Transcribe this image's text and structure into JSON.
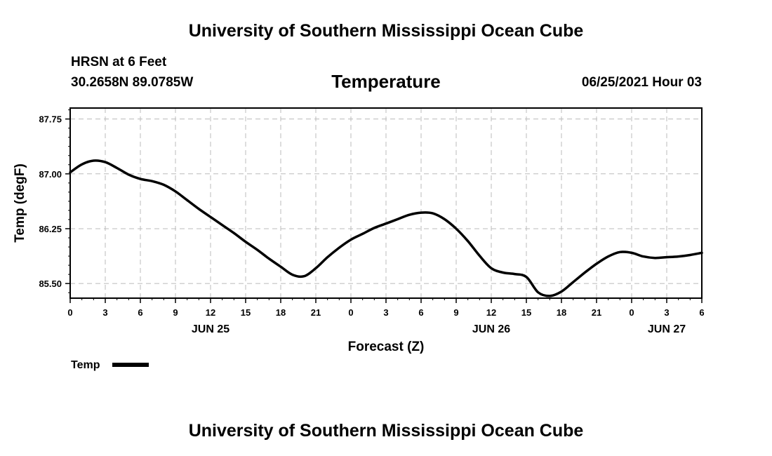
{
  "header": {
    "title": "University of Southern Mississippi Ocean Cube",
    "station": "HRSN at 6 Feet",
    "coords": "30.2658N  89.0785W",
    "variable": "Temperature",
    "datetime": "06/25/2021 Hour 03"
  },
  "footer": {
    "title": "University of Southern Mississippi Ocean Cube"
  },
  "colors": {
    "line": "#000000",
    "grid": "#bbbbbb",
    "background": "#ffffff"
  },
  "chart_data": {
    "type": "line",
    "title": "Temperature",
    "xlabel": "Forecast (Z)",
    "ylabel": "Temp (degF)",
    "x_unit": "hours since 06/25/2021 00Z",
    "xlim": [
      0,
      54
    ],
    "ylim": [
      85.3,
      87.9
    ],
    "x_ticks": [
      0,
      3,
      6,
      9,
      12,
      15,
      18,
      21,
      24,
      27,
      30,
      33,
      36,
      39,
      42,
      45,
      48,
      51,
      54
    ],
    "x_tick_labels": [
      "0",
      "3",
      "6",
      "9",
      "12",
      "15",
      "18",
      "21",
      "0",
      "3",
      "6",
      "9",
      "12",
      "15",
      "18",
      "21",
      "0",
      "3",
      "6"
    ],
    "y_ticks": [
      85.5,
      86.25,
      87.0,
      87.75
    ],
    "y_tick_labels": [
      "85.50",
      "86.25",
      "87.00",
      "87.75"
    ],
    "date_labels": [
      {
        "x": 12,
        "label": "JUN 25"
      },
      {
        "x": 36,
        "label": "JUN 26"
      },
      {
        "x": 51,
        "label": "JUN 27"
      }
    ],
    "grid": true,
    "legend": {
      "position": "bottom-left",
      "entries": [
        "Temp"
      ]
    },
    "series": [
      {
        "name": "Temp",
        "x": [
          0,
          1,
          2,
          3,
          4,
          5,
          6,
          7,
          8,
          9,
          10,
          11,
          12,
          13,
          14,
          15,
          16,
          17,
          18,
          19,
          20,
          21,
          22,
          23,
          24,
          25,
          26,
          27,
          28,
          29,
          30,
          31,
          32,
          33,
          34,
          35,
          36,
          37,
          38,
          39,
          40,
          41,
          42,
          43,
          44,
          45,
          46,
          47,
          48,
          49,
          50,
          51,
          52,
          53,
          54
        ],
        "values": [
          87.02,
          87.13,
          87.18,
          87.16,
          87.08,
          86.99,
          86.93,
          86.9,
          86.85,
          86.76,
          86.64,
          86.52,
          86.41,
          86.3,
          86.19,
          86.07,
          85.96,
          85.84,
          85.73,
          85.62,
          85.6,
          85.71,
          85.86,
          85.99,
          86.1,
          86.18,
          86.26,
          86.32,
          86.38,
          86.44,
          86.47,
          86.46,
          86.38,
          86.25,
          86.08,
          85.88,
          85.71,
          85.65,
          85.63,
          85.59,
          85.38,
          85.33,
          85.39,
          85.52,
          85.65,
          85.77,
          85.87,
          85.93,
          85.92,
          85.87,
          85.85,
          85.86,
          85.87,
          85.89,
          85.92
        ]
      }
    ]
  }
}
